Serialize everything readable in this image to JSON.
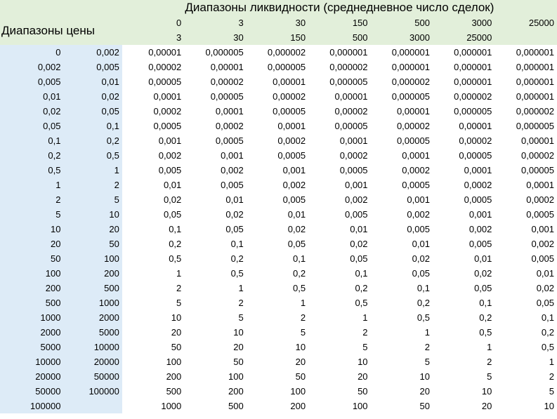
{
  "title": "Диапазоны ликвидности (среднедневное число сделок)",
  "price_header": "Диапазоны цены",
  "liquidity_from": [
    "0",
    "3",
    "30",
    "150",
    "500",
    "3000",
    "25000"
  ],
  "liquidity_to": [
    "3",
    "30",
    "150",
    "500",
    "3000",
    "25000",
    ""
  ],
  "rows": [
    {
      "from": "0",
      "to": "0,002",
      "values": [
        "0,00001",
        "0,000005",
        "0,000002",
        "0,000001",
        "0,000001",
        "0,000001",
        "0,000001"
      ]
    },
    {
      "from": "0,002",
      "to": "0,005",
      "values": [
        "0,00002",
        "0,00001",
        "0,000005",
        "0,000002",
        "0,000001",
        "0,000001",
        "0,000001"
      ]
    },
    {
      "from": "0,005",
      "to": "0,01",
      "values": [
        "0,00005",
        "0,00002",
        "0,00001",
        "0,000005",
        "0,000002",
        "0,000001",
        "0,000001"
      ]
    },
    {
      "from": "0,01",
      "to": "0,02",
      "values": [
        "0,0001",
        "0,00005",
        "0,00002",
        "0,00001",
        "0,000005",
        "0,000002",
        "0,000001"
      ]
    },
    {
      "from": "0,02",
      "to": "0,05",
      "values": [
        "0,0002",
        "0,0001",
        "0,00005",
        "0,00002",
        "0,00001",
        "0,000005",
        "0,000002"
      ]
    },
    {
      "from": "0,05",
      "to": "0,1",
      "values": [
        "0,0005",
        "0,0002",
        "0,0001",
        "0,00005",
        "0,00002",
        "0,00001",
        "0,000005"
      ]
    },
    {
      "from": "0,1",
      "to": "0,2",
      "values": [
        "0,001",
        "0,0005",
        "0,0002",
        "0,0001",
        "0,00005",
        "0,00002",
        "0,00001"
      ]
    },
    {
      "from": "0,2",
      "to": "0,5",
      "values": [
        "0,002",
        "0,001",
        "0,0005",
        "0,0002",
        "0,0001",
        "0,00005",
        "0,00002"
      ]
    },
    {
      "from": "0,5",
      "to": "1",
      "values": [
        "0,005",
        "0,002",
        "0,001",
        "0,0005",
        "0,0002",
        "0,0001",
        "0,00005"
      ]
    },
    {
      "from": "1",
      "to": "2",
      "values": [
        "0,01",
        "0,005",
        "0,002",
        "0,001",
        "0,0005",
        "0,0002",
        "0,0001"
      ]
    },
    {
      "from": "2",
      "to": "5",
      "values": [
        "0,02",
        "0,01",
        "0,005",
        "0,002",
        "0,001",
        "0,0005",
        "0,0002"
      ]
    },
    {
      "from": "5",
      "to": "10",
      "values": [
        "0,05",
        "0,02",
        "0,01",
        "0,005",
        "0,002",
        "0,001",
        "0,0005"
      ]
    },
    {
      "from": "10",
      "to": "20",
      "values": [
        "0,1",
        "0,05",
        "0,02",
        "0,01",
        "0,005",
        "0,002",
        "0,001"
      ]
    },
    {
      "from": "20",
      "to": "50",
      "values": [
        "0,2",
        "0,1",
        "0,05",
        "0,02",
        "0,01",
        "0,005",
        "0,002"
      ]
    },
    {
      "from": "50",
      "to": "100",
      "values": [
        "0,5",
        "0,2",
        "0,1",
        "0,05",
        "0,02",
        "0,01",
        "0,005"
      ]
    },
    {
      "from": "100",
      "to": "200",
      "values": [
        "1",
        "0,5",
        "0,2",
        "0,1",
        "0,05",
        "0,02",
        "0,01"
      ]
    },
    {
      "from": "200",
      "to": "500",
      "values": [
        "2",
        "1",
        "0,5",
        "0,2",
        "0,1",
        "0,05",
        "0,02"
      ]
    },
    {
      "from": "500",
      "to": "1000",
      "values": [
        "5",
        "2",
        "1",
        "0,5",
        "0,2",
        "0,1",
        "0,05"
      ]
    },
    {
      "from": "1000",
      "to": "2000",
      "values": [
        "10",
        "5",
        "2",
        "1",
        "0,5",
        "0,2",
        "0,1"
      ]
    },
    {
      "from": "2000",
      "to": "5000",
      "values": [
        "20",
        "10",
        "5",
        "2",
        "1",
        "0,5",
        "0,2"
      ]
    },
    {
      "from": "5000",
      "to": "10000",
      "values": [
        "50",
        "20",
        "10",
        "5",
        "2",
        "1",
        "0,5"
      ]
    },
    {
      "from": "10000",
      "to": "20000",
      "values": [
        "100",
        "50",
        "20",
        "10",
        "5",
        "2",
        "1"
      ]
    },
    {
      "from": "20000",
      "to": "50000",
      "values": [
        "200",
        "100",
        "50",
        "20",
        "10",
        "5",
        "2"
      ]
    },
    {
      "from": "50000",
      "to": "100000",
      "values": [
        "500",
        "200",
        "100",
        "50",
        "20",
        "10",
        "5"
      ]
    },
    {
      "from": "100000",
      "to": "",
      "values": [
        "1000",
        "500",
        "200",
        "100",
        "50",
        "20",
        "10"
      ]
    }
  ]
}
